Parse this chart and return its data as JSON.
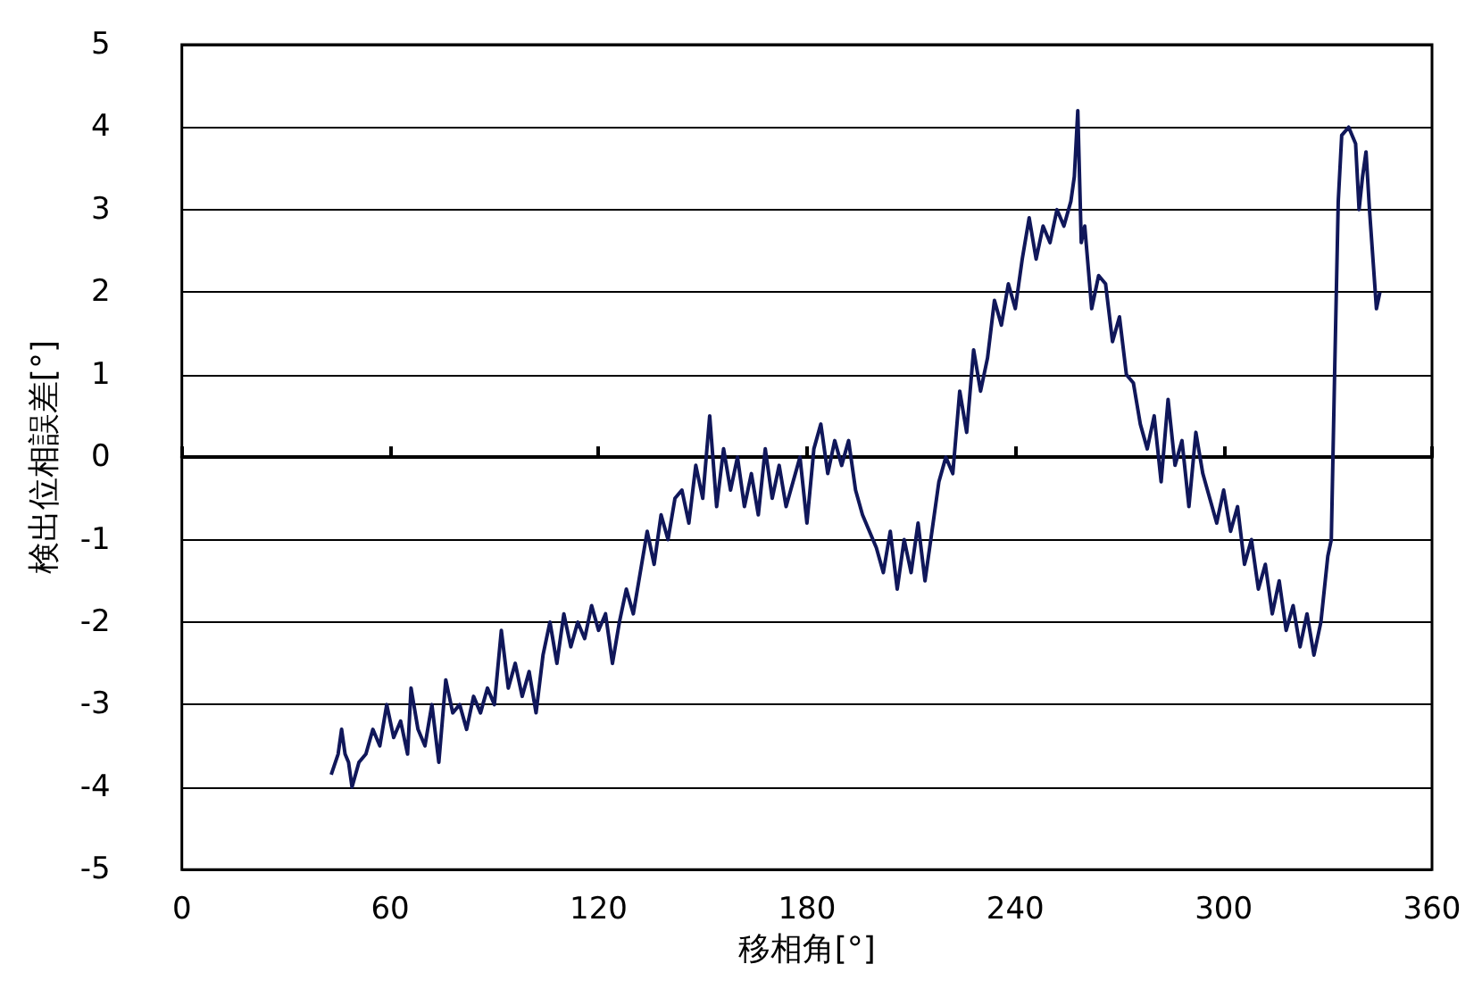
{
  "chart_data": {
    "type": "line",
    "xlabel": "移相角[°]",
    "ylabel": "検出位相誤差[°]",
    "xlim": [
      0,
      360
    ],
    "xticks": [
      0,
      60,
      120,
      180,
      240,
      300,
      360
    ],
    "ylim": [
      -5,
      5
    ],
    "yticks": [
      -5,
      -4,
      -3,
      -2,
      -1,
      0,
      1,
      2,
      3,
      4,
      5
    ],
    "grid": "y",
    "marker": "none",
    "line_style": "solid",
    "series": [
      {
        "color": "#10175a",
        "x": [
          43,
          45,
          46,
          47,
          48,
          49,
          51,
          53,
          55,
          57,
          59,
          61,
          63,
          65,
          66,
          68,
          70,
          72,
          74,
          76,
          78,
          80,
          82,
          84,
          86,
          88,
          90,
          92,
          94,
          96,
          98,
          100,
          102,
          104,
          106,
          108,
          110,
          112,
          114,
          116,
          118,
          120,
          122,
          124,
          126,
          128,
          130,
          132,
          134,
          136,
          138,
          140,
          142,
          144,
          146,
          148,
          150,
          152,
          154,
          156,
          158,
          160,
          162,
          164,
          166,
          168,
          170,
          172,
          174,
          176,
          178,
          180,
          182,
          184,
          186,
          188,
          190,
          192,
          194,
          196,
          198,
          200,
          202,
          204,
          206,
          208,
          210,
          212,
          214,
          216,
          218,
          220,
          222,
          224,
          226,
          228,
          230,
          232,
          234,
          236,
          238,
          240,
          242,
          244,
          246,
          248,
          250,
          252,
          254,
          256,
          257,
          258,
          259,
          260,
          262,
          264,
          266,
          268,
          270,
          272,
          274,
          276,
          278,
          280,
          282,
          284,
          286,
          288,
          290,
          292,
          294,
          296,
          298,
          300,
          302,
          304,
          306,
          308,
          310,
          312,
          314,
          316,
          318,
          320,
          322,
          324,
          326,
          328,
          330,
          331,
          332,
          333,
          334,
          336,
          338,
          339,
          340,
          341,
          342,
          343,
          344,
          345
        ],
        "values": [
          -3.85,
          -3.6,
          -3.3,
          -3.6,
          -3.7,
          -4.0,
          -3.7,
          -3.6,
          -3.3,
          -3.5,
          -3.0,
          -3.4,
          -3.2,
          -3.6,
          -2.8,
          -3.3,
          -3.5,
          -3.0,
          -3.7,
          -2.7,
          -3.1,
          -3.0,
          -3.3,
          -2.9,
          -3.1,
          -2.8,
          -3.0,
          -2.1,
          -2.8,
          -2.5,
          -2.9,
          -2.6,
          -3.1,
          -2.4,
          -2.0,
          -2.5,
          -1.9,
          -2.3,
          -2.0,
          -2.2,
          -1.8,
          -2.1,
          -1.9,
          -2.5,
          -2.0,
          -1.6,
          -1.9,
          -1.4,
          -0.9,
          -1.3,
          -0.7,
          -1.0,
          -0.5,
          -0.4,
          -0.8,
          -0.1,
          -0.5,
          0.5,
          -0.6,
          0.1,
          -0.4,
          0.0,
          -0.6,
          -0.2,
          -0.7,
          0.1,
          -0.5,
          -0.1,
          -0.6,
          -0.3,
          0.0,
          -0.8,
          0.1,
          0.4,
          -0.2,
          0.2,
          -0.1,
          0.2,
          -0.4,
          -0.7,
          -0.9,
          -1.1,
          -1.4,
          -0.9,
          -1.6,
          -1.0,
          -1.4,
          -0.8,
          -1.5,
          -0.9,
          -0.3,
          0.0,
          -0.2,
          0.8,
          0.3,
          1.3,
          0.8,
          1.2,
          1.9,
          1.6,
          2.1,
          1.8,
          2.4,
          2.9,
          2.4,
          2.8,
          2.6,
          3.0,
          2.8,
          3.1,
          3.4,
          4.2,
          2.6,
          2.8,
          1.8,
          2.2,
          2.1,
          1.4,
          1.7,
          1.0,
          0.9,
          0.4,
          0.1,
          0.5,
          -0.3,
          0.7,
          -0.1,
          0.2,
          -0.6,
          0.3,
          -0.2,
          -0.5,
          -0.8,
          -0.4,
          -0.9,
          -0.6,
          -1.3,
          -1.0,
          -1.6,
          -1.3,
          -1.9,
          -1.5,
          -2.1,
          -1.8,
          -2.3,
          -1.9,
          -2.4,
          -2.0,
          -1.2,
          -1.0,
          1.1,
          3.1,
          3.9,
          4.0,
          3.8,
          3.0,
          3.4,
          3.7,
          3.0,
          2.4,
          1.8,
          2.0
        ]
      }
    ]
  }
}
